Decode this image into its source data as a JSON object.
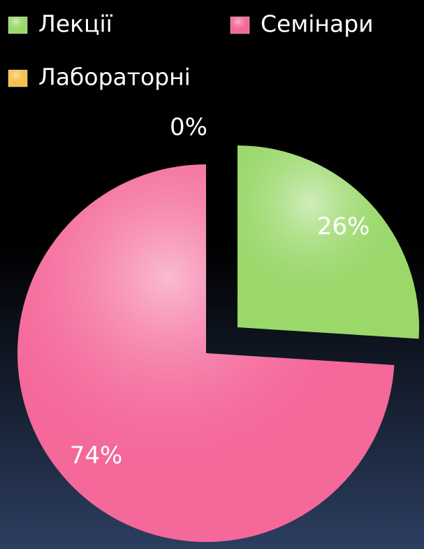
{
  "chart_data": {
    "type": "pie",
    "categories": [
      "Лекції",
      "Семінари",
      "Лабораторні"
    ],
    "values": [
      26,
      74,
      0
    ],
    "value_labels": [
      "26%",
      "74%",
      "0%"
    ],
    "colors": [
      "#9ad86a",
      "#f4689a",
      "#f5c14a"
    ]
  }
}
